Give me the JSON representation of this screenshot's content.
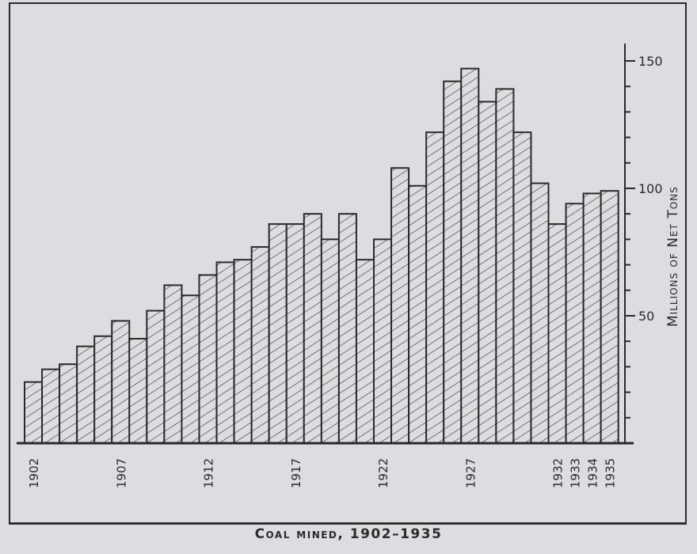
{
  "chart_data": {
    "type": "bar",
    "title": "Coal mined, 1902–1935",
    "xlabel": "",
    "ylabel": "Millions of Net Tons",
    "ylim": [
      0,
      150
    ],
    "y_ticks_major": [
      50,
      100,
      150
    ],
    "y_tick_step": 10,
    "y_axis_position": "right",
    "grid": false,
    "bar_style": "diagonal-hatch",
    "categories": [
      "1902",
      "1903",
      "1904",
      "1905",
      "1906",
      "1907",
      "1908",
      "1909",
      "1910",
      "1911",
      "1912",
      "1913",
      "1914",
      "1915",
      "1916",
      "1917",
      "1918",
      "1919",
      "1920",
      "1921",
      "1922",
      "1923",
      "1924",
      "1925",
      "1926",
      "1927",
      "1928",
      "1929",
      "1930",
      "1931",
      "1932",
      "1933",
      "1934",
      "1935"
    ],
    "x_tick_labels": [
      "1902",
      "1907",
      "1912",
      "1917",
      "1922",
      "1927",
      "1932",
      "1933",
      "1934",
      "1935"
    ],
    "values": [
      24,
      29,
      31,
      38,
      42,
      48,
      41,
      52,
      62,
      58,
      66,
      71,
      72,
      77,
      86,
      86,
      90,
      80,
      90,
      72,
      80,
      108,
      101,
      122,
      142,
      147,
      134,
      139,
      122,
      102,
      86,
      94,
      98,
      99
    ],
    "colors": {
      "bar_fill": "#dcdde0",
      "bar_stroke": "#2a2a2a",
      "hatch": "#3a3a3a",
      "background": "#dcdde0"
    }
  },
  "labels": {
    "title": "Coal mined, 1902–1935",
    "ylabel": "Millions of Net Tons"
  }
}
